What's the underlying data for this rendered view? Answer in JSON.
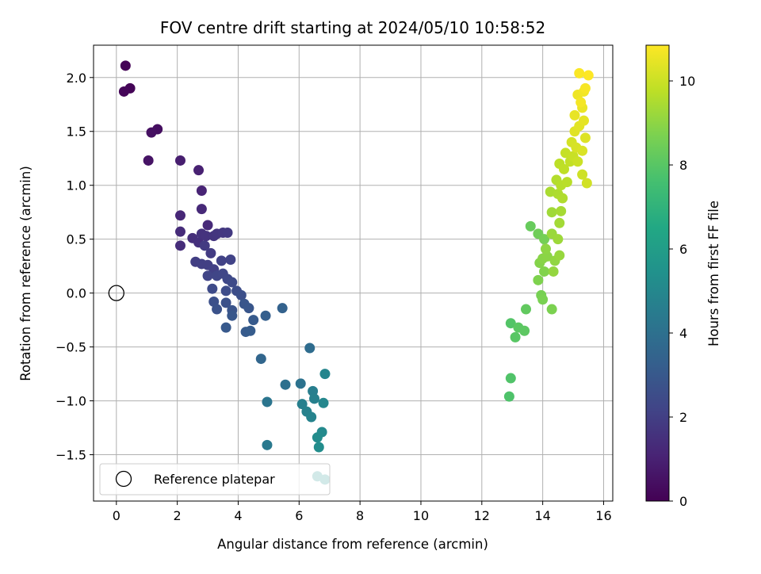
{
  "chart_data": {
    "type": "scatter",
    "title": "FOV centre drift starting at 2024/05/10 10:58:52",
    "xlabel": "Angular distance from reference (arcmin)",
    "ylabel": "Rotation from reference (arcmin)",
    "xlim": [
      -0.75,
      16.3
    ],
    "ylim": [
      -1.93,
      2.3
    ],
    "xticks": [
      "0",
      "2",
      "4",
      "6",
      "8",
      "10",
      "12",
      "14",
      "16"
    ],
    "xtick_values": [
      0,
      2,
      4,
      6,
      8,
      10,
      12,
      14,
      16
    ],
    "yticks": [
      "−1.5",
      "−1.0",
      "−0.5",
      "0.0",
      "0.5",
      "1.0",
      "1.5",
      "2.0"
    ],
    "ytick_values": [
      -1.5,
      -1.0,
      -0.5,
      0.0,
      0.5,
      1.0,
      1.5,
      2.0
    ],
    "grid": true,
    "colormap": "viridis",
    "colorbar": {
      "label": "Hours from first FF file",
      "range": [
        0,
        10.85
      ],
      "ticks": [
        "0",
        "2",
        "4",
        "6",
        "8",
        "10"
      ],
      "tick_values": [
        0,
        2,
        4,
        6,
        8,
        10
      ]
    },
    "legend": {
      "position": "lower-left",
      "entries": [
        {
          "label": "Reference platepar",
          "marker": "open-circle"
        }
      ]
    },
    "reference_point": {
      "x": 0.0,
      "y": 0.0
    },
    "series": [
      {
        "points": [
          {
            "x": 0.3,
            "y": 2.11,
            "c": 0.05
          },
          {
            "x": 0.45,
            "y": 1.9,
            "c": 0.1
          },
          {
            "x": 0.25,
            "y": 1.87,
            "c": 0.15
          },
          {
            "x": 1.35,
            "y": 1.52,
            "c": 0.4
          },
          {
            "x": 1.15,
            "y": 1.49,
            "c": 0.45
          },
          {
            "x": 1.05,
            "y": 1.23,
            "c": 0.55
          },
          {
            "x": 2.1,
            "y": 1.23,
            "c": 0.9
          },
          {
            "x": 2.7,
            "y": 1.14,
            "c": 1.0
          },
          {
            "x": 2.8,
            "y": 0.95,
            "c": 1.1
          },
          {
            "x": 2.1,
            "y": 0.72,
            "c": 1.2
          },
          {
            "x": 2.8,
            "y": 0.78,
            "c": 1.25
          },
          {
            "x": 3.0,
            "y": 0.63,
            "c": 1.3
          },
          {
            "x": 2.1,
            "y": 0.57,
            "c": 1.35
          },
          {
            "x": 2.1,
            "y": 0.44,
            "c": 1.4
          },
          {
            "x": 2.5,
            "y": 0.51,
            "c": 1.45
          },
          {
            "x": 2.7,
            "y": 0.47,
            "c": 1.5
          },
          {
            "x": 2.8,
            "y": 0.55,
            "c": 1.55
          },
          {
            "x": 2.95,
            "y": 0.53,
            "c": 1.6
          },
          {
            "x": 3.2,
            "y": 0.53,
            "c": 1.65
          },
          {
            "x": 3.3,
            "y": 0.55,
            "c": 1.7
          },
          {
            "x": 3.5,
            "y": 0.56,
            "c": 1.75
          },
          {
            "x": 3.65,
            "y": 0.56,
            "c": 1.8
          },
          {
            "x": 2.9,
            "y": 0.44,
            "c": 1.85
          },
          {
            "x": 3.1,
            "y": 0.37,
            "c": 1.9
          },
          {
            "x": 2.6,
            "y": 0.29,
            "c": 1.95
          },
          {
            "x": 2.8,
            "y": 0.27,
            "c": 2.0
          },
          {
            "x": 3.0,
            "y": 0.26,
            "c": 2.0
          },
          {
            "x": 3.2,
            "y": 0.22,
            "c": 2.05
          },
          {
            "x": 3.45,
            "y": 0.3,
            "c": 2.1
          },
          {
            "x": 3.75,
            "y": 0.31,
            "c": 2.15
          },
          {
            "x": 3.0,
            "y": 0.16,
            "c": 2.2
          },
          {
            "x": 3.3,
            "y": 0.16,
            "c": 2.25
          },
          {
            "x": 3.5,
            "y": 0.18,
            "c": 2.3
          },
          {
            "x": 3.65,
            "y": 0.13,
            "c": 2.35
          },
          {
            "x": 3.8,
            "y": 0.1,
            "c": 2.4
          },
          {
            "x": 3.15,
            "y": 0.04,
            "c": 2.45
          },
          {
            "x": 3.6,
            "y": 0.02,
            "c": 2.5
          },
          {
            "x": 3.95,
            "y": 0.02,
            "c": 2.55
          },
          {
            "x": 4.1,
            "y": -0.02,
            "c": 2.6
          },
          {
            "x": 3.2,
            "y": -0.08,
            "c": 2.65
          },
          {
            "x": 3.6,
            "y": -0.09,
            "c": 2.7
          },
          {
            "x": 3.3,
            "y": -0.15,
            "c": 2.75
          },
          {
            "x": 3.8,
            "y": -0.16,
            "c": 2.8
          },
          {
            "x": 4.2,
            "y": -0.1,
            "c": 2.85
          },
          {
            "x": 4.35,
            "y": -0.14,
            "c": 2.9
          },
          {
            "x": 3.8,
            "y": -0.21,
            "c": 2.95
          },
          {
            "x": 3.6,
            "y": -0.32,
            "c": 3.0
          },
          {
            "x": 4.5,
            "y": -0.25,
            "c": 3.05
          },
          {
            "x": 4.25,
            "y": -0.36,
            "c": 3.1
          },
          {
            "x": 4.4,
            "y": -0.35,
            "c": 3.15
          },
          {
            "x": 4.9,
            "y": -0.21,
            "c": 3.25
          },
          {
            "x": 5.45,
            "y": -0.14,
            "c": 3.4
          },
          {
            "x": 4.75,
            "y": -0.61,
            "c": 3.55
          },
          {
            "x": 6.35,
            "y": -0.51,
            "c": 3.8
          },
          {
            "x": 5.55,
            "y": -0.85,
            "c": 4.0
          },
          {
            "x": 6.05,
            "y": -0.84,
            "c": 4.1
          },
          {
            "x": 4.95,
            "y": -1.01,
            "c": 4.2
          },
          {
            "x": 4.95,
            "y": -1.41,
            "c": 4.4
          },
          {
            "x": 6.45,
            "y": -0.91,
            "c": 4.6
          },
          {
            "x": 6.1,
            "y": -1.03,
            "c": 4.65
          },
          {
            "x": 6.5,
            "y": -0.98,
            "c": 4.7
          },
          {
            "x": 6.25,
            "y": -1.1,
            "c": 4.75
          },
          {
            "x": 6.4,
            "y": -1.15,
            "c": 4.8
          },
          {
            "x": 6.85,
            "y": -0.75,
            "c": 4.9
          },
          {
            "x": 6.8,
            "y": -1.02,
            "c": 5.0
          },
          {
            "x": 6.75,
            "y": -1.29,
            "c": 5.1
          },
          {
            "x": 6.6,
            "y": -1.34,
            "c": 5.2
          },
          {
            "x": 6.65,
            "y": -1.43,
            "c": 5.25
          },
          {
            "x": 6.6,
            "y": -1.7,
            "c": 5.35
          },
          {
            "x": 6.85,
            "y": -1.73,
            "c": 5.45
          },
          {
            "x": 12.9,
            "y": -0.96,
            "c": 7.8
          },
          {
            "x": 12.95,
            "y": -0.79,
            "c": 7.85
          },
          {
            "x": 12.95,
            "y": -0.28,
            "c": 7.9
          },
          {
            "x": 13.1,
            "y": -0.41,
            "c": 8.0
          },
          {
            "x": 13.2,
            "y": -0.32,
            "c": 8.05
          },
          {
            "x": 13.4,
            "y": -0.35,
            "c": 8.1
          },
          {
            "x": 13.45,
            "y": -0.15,
            "c": 8.2
          },
          {
            "x": 13.6,
            "y": 0.62,
            "c": 8.3
          },
          {
            "x": 13.85,
            "y": 0.55,
            "c": 8.45
          },
          {
            "x": 14.05,
            "y": 0.5,
            "c": 8.55
          },
          {
            "x": 13.95,
            "y": -0.02,
            "c": 8.6
          },
          {
            "x": 14.0,
            "y": -0.06,
            "c": 8.65
          },
          {
            "x": 14.3,
            "y": -0.15,
            "c": 8.7
          },
          {
            "x": 13.85,
            "y": 0.12,
            "c": 8.75
          },
          {
            "x": 14.05,
            "y": 0.2,
            "c": 8.8
          },
          {
            "x": 13.9,
            "y": 0.28,
            "c": 8.85
          },
          {
            "x": 14.0,
            "y": 0.32,
            "c": 8.9
          },
          {
            "x": 14.15,
            "y": 0.34,
            "c": 8.95
          },
          {
            "x": 14.1,
            "y": 0.41,
            "c": 9.0
          },
          {
            "x": 14.4,
            "y": 0.3,
            "c": 9.05
          },
          {
            "x": 14.35,
            "y": 0.2,
            "c": 9.1
          },
          {
            "x": 14.55,
            "y": 0.35,
            "c": 9.15
          },
          {
            "x": 14.3,
            "y": 0.55,
            "c": 9.2
          },
          {
            "x": 14.5,
            "y": 0.5,
            "c": 9.25
          },
          {
            "x": 14.3,
            "y": 0.75,
            "c": 9.3
          },
          {
            "x": 14.55,
            "y": 0.65,
            "c": 9.35
          },
          {
            "x": 14.6,
            "y": 0.76,
            "c": 9.4
          },
          {
            "x": 14.25,
            "y": 0.94,
            "c": 9.45
          },
          {
            "x": 14.5,
            "y": 0.92,
            "c": 9.5
          },
          {
            "x": 14.65,
            "y": 0.88,
            "c": 9.55
          },
          {
            "x": 14.45,
            "y": 1.05,
            "c": 9.6
          },
          {
            "x": 14.6,
            "y": 1.0,
            "c": 9.65
          },
          {
            "x": 14.8,
            "y": 1.03,
            "c": 9.7
          },
          {
            "x": 14.55,
            "y": 1.2,
            "c": 9.75
          },
          {
            "x": 14.7,
            "y": 1.15,
            "c": 9.8
          },
          {
            "x": 14.9,
            "y": 1.22,
            "c": 9.85
          },
          {
            "x": 14.75,
            "y": 1.3,
            "c": 9.9
          },
          {
            "x": 15.0,
            "y": 1.27,
            "c": 9.95
          },
          {
            "x": 15.15,
            "y": 1.22,
            "c": 10.0
          },
          {
            "x": 15.3,
            "y": 1.1,
            "c": 10.05
          },
          {
            "x": 15.45,
            "y": 1.02,
            "c": 10.1
          },
          {
            "x": 14.95,
            "y": 1.4,
            "c": 10.15
          },
          {
            "x": 15.1,
            "y": 1.35,
            "c": 10.2
          },
          {
            "x": 15.3,
            "y": 1.32,
            "c": 10.25
          },
          {
            "x": 15.4,
            "y": 1.44,
            "c": 10.3
          },
          {
            "x": 15.05,
            "y": 1.5,
            "c": 10.35
          },
          {
            "x": 15.2,
            "y": 1.55,
            "c": 10.4
          },
          {
            "x": 15.35,
            "y": 1.6,
            "c": 10.45
          },
          {
            "x": 15.05,
            "y": 1.65,
            "c": 10.5
          },
          {
            "x": 15.3,
            "y": 1.72,
            "c": 10.55
          },
          {
            "x": 15.15,
            "y": 1.84,
            "c": 10.6
          },
          {
            "x": 15.35,
            "y": 1.87,
            "c": 10.65
          },
          {
            "x": 15.25,
            "y": 1.77,
            "c": 10.7
          },
          {
            "x": 15.4,
            "y": 1.9,
            "c": 10.75
          },
          {
            "x": 15.2,
            "y": 2.04,
            "c": 10.8
          },
          {
            "x": 15.5,
            "y": 2.02,
            "c": 10.85
          }
        ]
      }
    ]
  }
}
